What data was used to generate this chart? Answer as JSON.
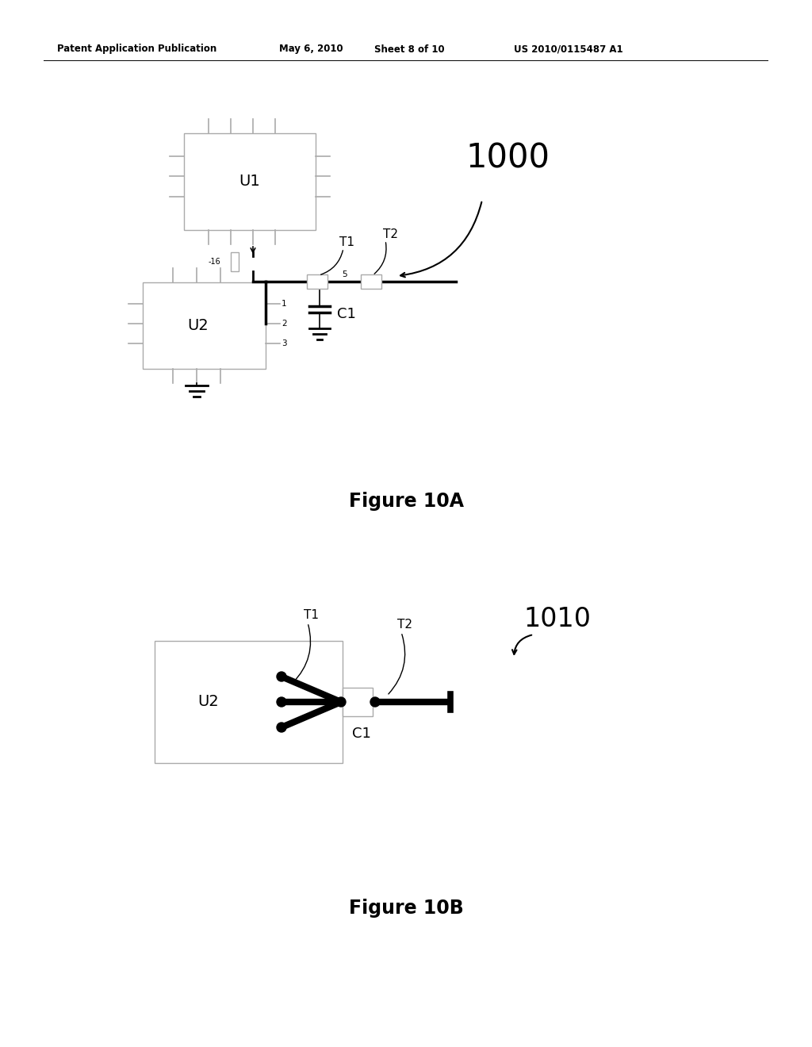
{
  "bg_color": "#ffffff",
  "header_left": "Patent Application Publication",
  "header_mid1": "May 6, 2010",
  "header_mid2": "Sheet 8 of 10",
  "header_right": "US 2010/0115487 A1",
  "fig10a_label": "Figure 10A",
  "fig10b_label": "Figure 10B",
  "label_1000": "1000",
  "label_1010": "1010",
  "label_U1": "U1",
  "label_U2a": "U2",
  "label_U2b": "U2",
  "label_T1a": "T1",
  "label_T2a": "T2",
  "label_T1b": "T1",
  "label_T2b": "T2",
  "label_C1a": "C1",
  "label_C1b": "C1",
  "label_neg16": "-16",
  "label_1": "1",
  "label_2": "2",
  "label_3": "3",
  "label_5": "5",
  "pin_color": "#aaaaaa",
  "wire_color": "#000000",
  "box_edge_color": "#aaaaaa"
}
